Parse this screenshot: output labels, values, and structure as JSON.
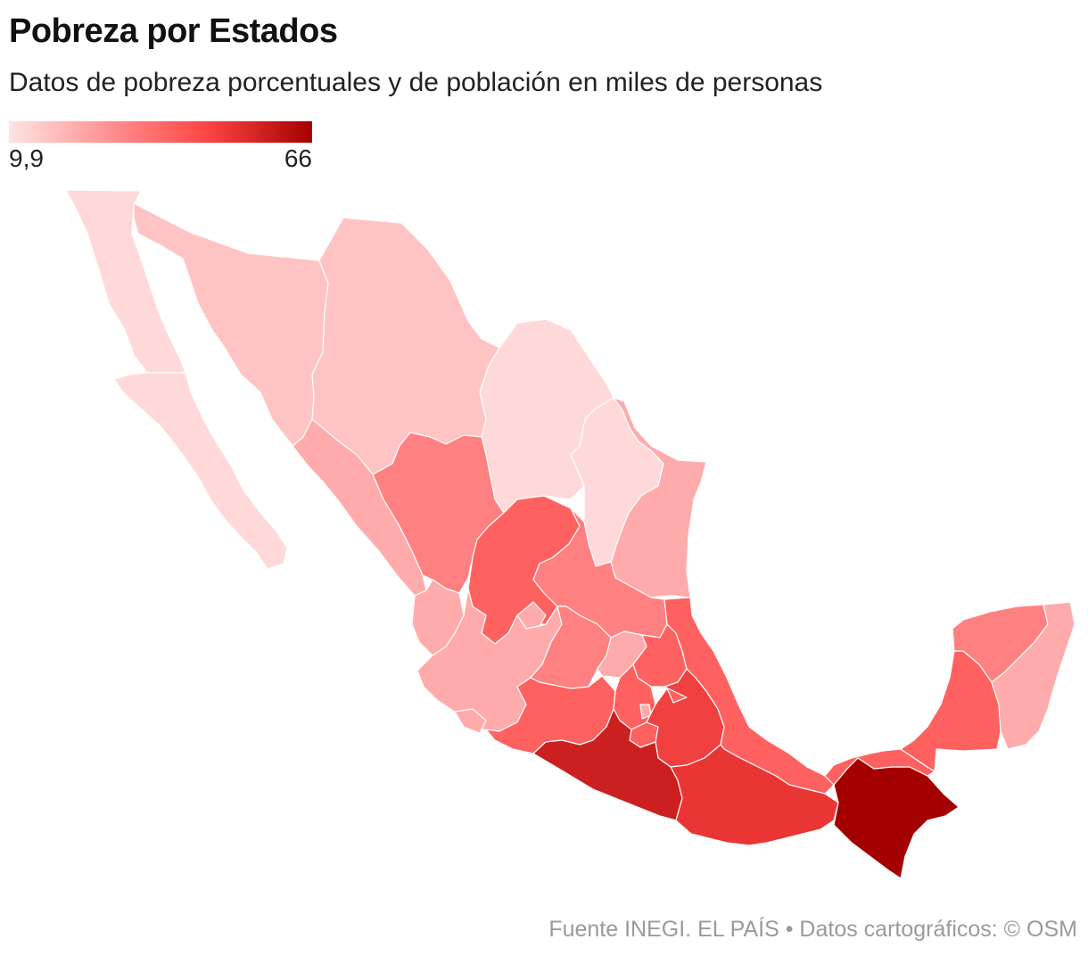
{
  "title": "Pobreza por Estados",
  "subtitle": "Datos de pobreza porcentuales y de población en miles de personas",
  "legend": {
    "min_label": "9,9",
    "max_label": "66"
  },
  "map": {
    "name": "Mexico poverty choropleth",
    "colors": {
      "very_light": "#ffd9d9",
      "light": "#ffc3c3",
      "mid_light": "#ffabab",
      "mid": "#ff8080",
      "mid_dark": "#ff6060",
      "strong": "#f04040",
      "darker": "#e83535",
      "guerrero": "#cc2020",
      "chiapas": "#a50000",
      "oaxaca": "#ea3535"
    }
  },
  "footer": {
    "source": "Fuente INEGI. EL PAÍS  • Datos cartográficos: © OSM"
  }
}
